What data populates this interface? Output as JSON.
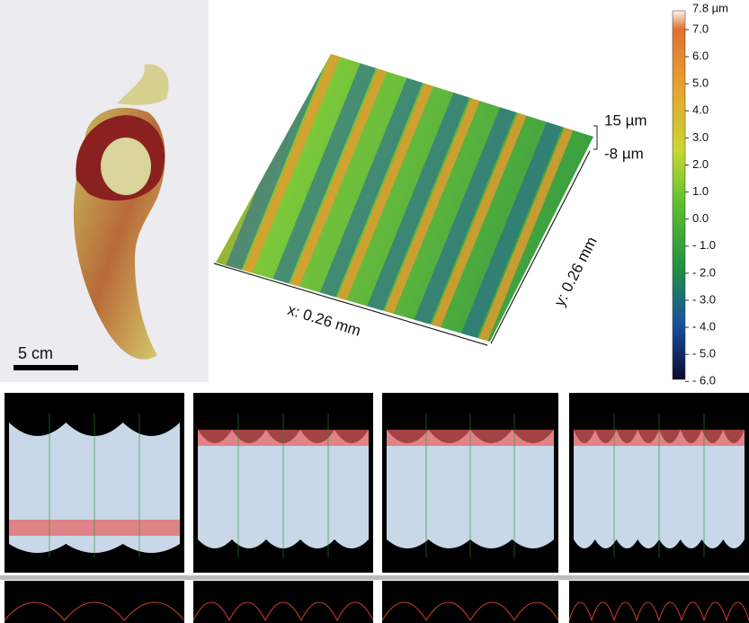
{
  "photo": {
    "scale_bar": "5 cm"
  },
  "surface_3d": {
    "x_axis": "x: 0.26 mm",
    "y_axis": "y: 0.26 mm",
    "z_top": "15 µm",
    "z_bottom": "-8 µm"
  },
  "colorbar": {
    "labels": [
      "7.8 µm",
      "7.0",
      "6.0",
      "5.0",
      "4.0",
      "3.0",
      "2.0",
      "1.0",
      "0.0",
      "- 1.0",
      "- 2.0",
      "- 3.0",
      "- 4.0",
      "- 5.0",
      "- 6.0"
    ]
  }
}
